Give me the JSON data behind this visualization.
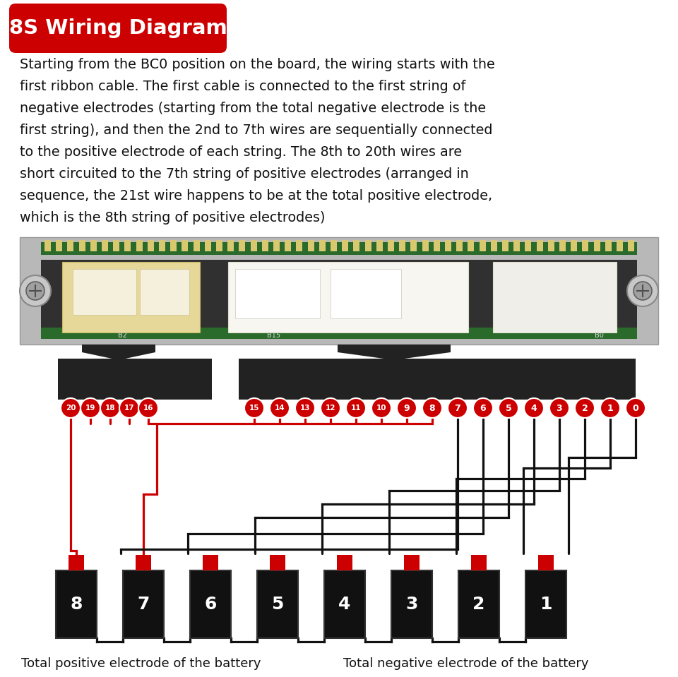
{
  "title": "8S Wiring Diagram",
  "title_bg": "#CC0000",
  "title_text_color": "#FFFFFF",
  "body_text_lines": [
    "Starting from the BC0 position on the board, the wiring starts with the",
    "first ribbon cable. The first cable is connected to the first string of",
    "negative electrodes (starting from the total negative electrode is the",
    "first string), and then the 2nd to 7th wires are sequentially connected",
    "to the positive electrode of each string. The 8th to 20th wires are",
    "short circuited to the 7th string of positive electrodes (arranged in",
    "sequence, the 21st wire happens to be at the total positive electrode,",
    "which is the 8th string of positive electrodes)"
  ],
  "bg_color": "#FFFFFF",
  "wire_black": "#111111",
  "wire_red": "#CC0000",
  "pin_bg": "#CC0000",
  "pin_text_color": "#FFFFFF",
  "battery_color": "#111111",
  "terminal_color": "#CC0000",
  "label_left": "Total positive electrode of the battery",
  "label_right": "Total negative electrode of the battery",
  "photo_bg": "#AAAAAA",
  "ribbon_color": "#222222",
  "arrow_color": "#222222"
}
